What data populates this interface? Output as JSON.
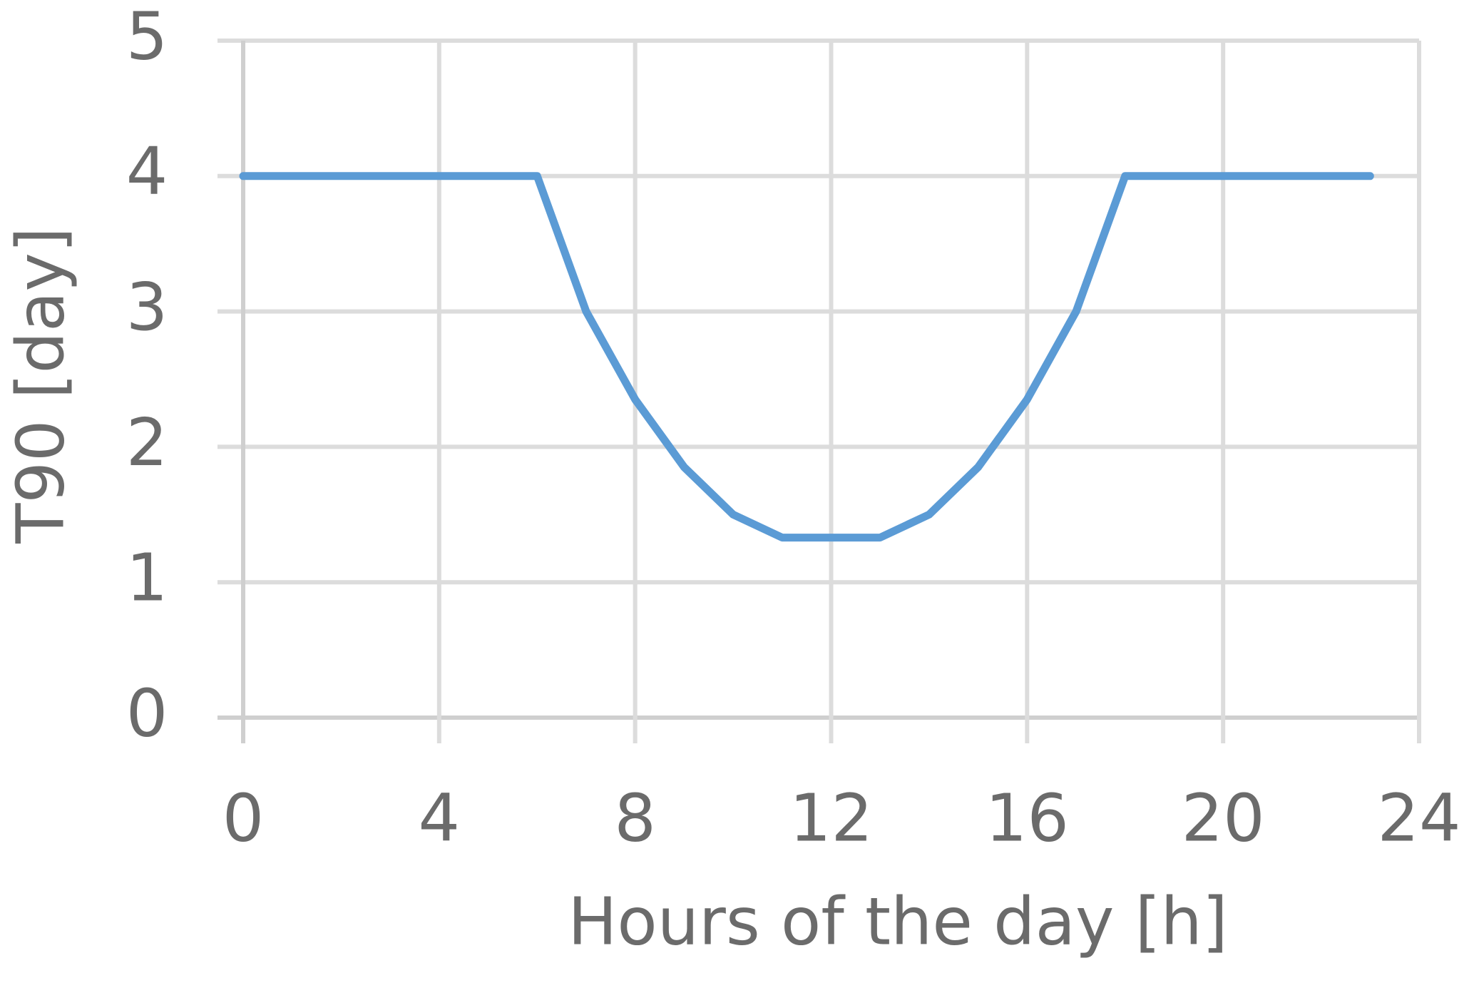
{
  "chart_data": {
    "type": "line",
    "x_label": "Hours of the day [h]",
    "y_label": "T90 [day]",
    "x": [
      0,
      1,
      2,
      3,
      4,
      5,
      6,
      7,
      8,
      9,
      10,
      11,
      12,
      13,
      14,
      15,
      16,
      17,
      18,
      19,
      20,
      21,
      22,
      23
    ],
    "series": [
      {
        "color": "#5b9bd5",
        "values": [
          4,
          4,
          4,
          4,
          4,
          4,
          4,
          3,
          2.35,
          1.85,
          1.5,
          1.33,
          1.33,
          1.33,
          1.5,
          1.85,
          2.35,
          3,
          4,
          4,
          4,
          4,
          4,
          4
        ]
      }
    ],
    "xlim": [
      0,
      24
    ],
    "xticks": [
      0,
      4,
      8,
      12,
      16,
      20,
      24
    ],
    "ylim": [
      0,
      5
    ],
    "yticks": [
      0,
      1,
      2,
      3,
      4,
      5
    ],
    "grid": true
  }
}
